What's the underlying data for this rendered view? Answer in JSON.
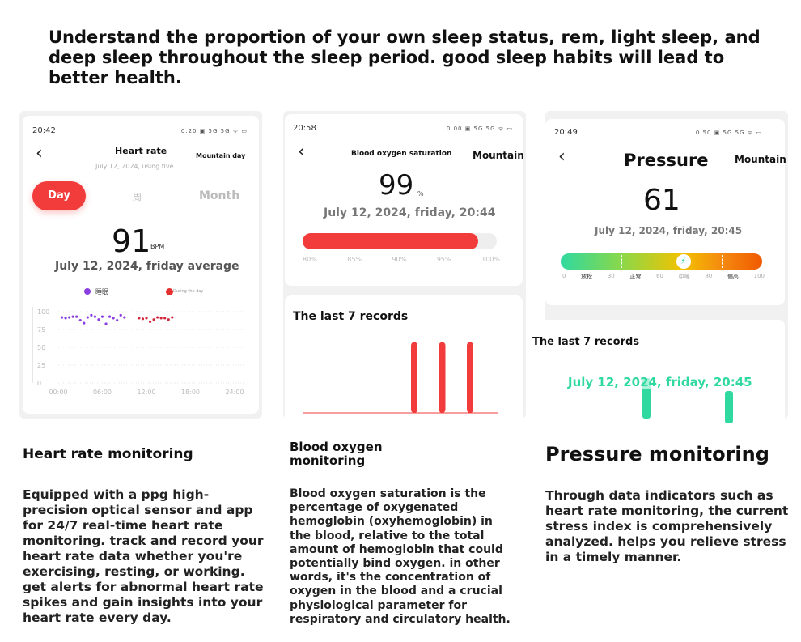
{
  "headline": "Understand the proportion of your own sleep status, rem, light sleep, and deep sleep throughout the sleep period. good sleep habits will lead to better health.",
  "heart": {
    "time": "20:42",
    "status": "0.20 ▣ 5G 5G ᯤ ▭",
    "title": "Heart rate",
    "subtitle": "July 12, 2024, using five",
    "right": "Mountain day",
    "tabs": [
      {
        "label": "Day",
        "active": true
      },
      {
        "label": "周"
      },
      {
        "label": "Month"
      }
    ],
    "value": "91",
    "unit": "BPM",
    "date": "July 12, 2024, friday average",
    "legend": [
      {
        "label": "睡眠",
        "color": "#8a3ee0"
      },
      {
        "label": "During the day",
        "color": "#e53030"
      }
    ],
    "y_ticks": [
      "100",
      "75",
      "50",
      "25",
      "0"
    ],
    "x_ticks": [
      "00:00",
      "06:00",
      "12:00",
      "18:00",
      "24:00"
    ],
    "sleep_points": [
      [
        0.5,
        92
      ],
      [
        1,
        91
      ],
      [
        1.5,
        92
      ],
      [
        2,
        93
      ],
      [
        2.5,
        93
      ],
      [
        3,
        88
      ],
      [
        3.5,
        84
      ],
      [
        4,
        92
      ],
      [
        4.5,
        95
      ],
      [
        5,
        93
      ],
      [
        5.5,
        89
      ],
      [
        6,
        93
      ],
      [
        6.5,
        83
      ],
      [
        7,
        93
      ],
      [
        7.5,
        91
      ],
      [
        8,
        88
      ],
      [
        8.5,
        95
      ],
      [
        9,
        92
      ]
    ],
    "day_points": [
      [
        11,
        91
      ],
      [
        11.5,
        90
      ],
      [
        12,
        91
      ],
      [
        12.5,
        86
      ],
      [
        13,
        89
      ],
      [
        13.5,
        92
      ],
      [
        14,
        91
      ],
      [
        14.5,
        91
      ],
      [
        15,
        89
      ],
      [
        15.5,
        92
      ]
    ],
    "section_title": "Heart rate monitoring",
    "description": "Equipped with a ppg high-precision optical sensor and app for 24/7 real-time heart rate monitoring. track and record your heart rate data whether you're exercising, resting, or working. get alerts for abnormal heart rate spikes and gain insights into your heart rate every day."
  },
  "oxygen": {
    "time": "20:58",
    "status": "0.00 ▣ 5G 5G ᯤ ▭",
    "title": "Blood oxygen saturation",
    "right": "Mountain",
    "value": "99",
    "unit": "%",
    "date": "July 12, 2024, friday, 20:44",
    "progress_percent": 99,
    "scale": [
      "80%",
      "85%",
      "90%",
      "95%",
      "100%"
    ],
    "records_title": "The last 7 records",
    "record_bars": [
      0,
      0,
      0,
      0,
      99,
      99,
      99
    ],
    "section_title": "Blood oxygen monitoring",
    "description": "Blood oxygen saturation is the percentage of oxygenated hemoglobin (oxyhemoglobin) in the blood, relative to the total amount of hemoglobin that could potentially bind oxygen. in other words, it's the concentration of oxygen in the blood and a crucial physiological parameter for respiratory and circulatory health."
  },
  "pressure": {
    "time": "20:49",
    "status": "0.50 ▣ 5G 5G ᯤ ▭",
    "title": "Pressure",
    "right": "Mountain",
    "value": "61",
    "date": "July 12, 2024, friday, 20:45",
    "level": 61,
    "scale": [
      "0",
      "放松",
      "30",
      "正常",
      "60",
      "中等",
      "80",
      "偏高",
      "100"
    ],
    "records_title": "The last 7 records",
    "records_date": "July 12, 2024, friday, 20:45",
    "section_title": "Pressure monitoring",
    "description": "Through data indicators such as heart rate monitoring, the current stress index is comprehensively analyzed. helps you relieve stress in a timely manner."
  },
  "colors": {
    "accent": "#f23b3b",
    "sleep": "#8a3ee0",
    "teal": "#2fd9a0"
  }
}
